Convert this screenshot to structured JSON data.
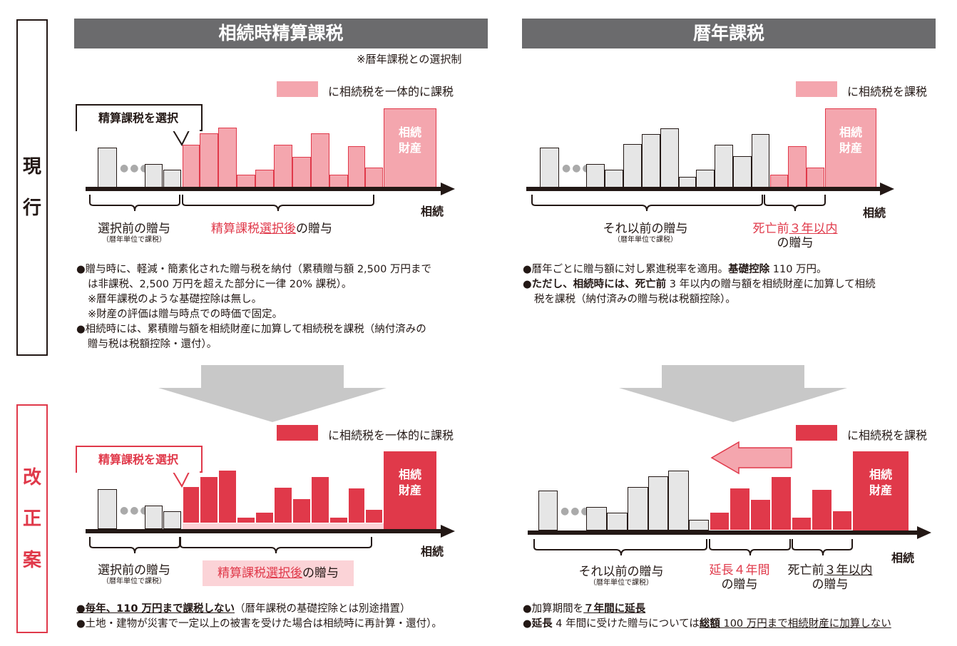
{
  "side_labels": {
    "current": [
      "現",
      "行"
    ],
    "revised": [
      "改",
      "正",
      "案"
    ]
  },
  "left": {
    "header": "相続時精算課税",
    "note": "※暦年課税との選択制",
    "current": {
      "legend": "に相続税を一体的に課税",
      "callout": "精算課税を選択",
      "property_label": [
        "相続",
        "財産"
      ],
      "axis_label": "相続",
      "brace_left_label": "選択前の贈与",
      "brace_left_sub": "（暦年単位で課税）",
      "brace_right_label_red": "精算課税",
      "brace_right_label_red_ul": "選択後",
      "brace_right_label_tail": "の贈与",
      "bullets": [
        "●贈与時に、軽減・簡素化された贈与税を納付（累積贈与額 2,500 万円まで",
        "は非課税、2,500 万円を超えた部分に一律 20% 課税）。",
        "※暦年課税のような基礎控除は無し。",
        "※財産の評価は贈与時点での時価で固定。",
        "●相続時には、累積贈与額を相続財産に加算して相続税を課税（納付済みの",
        "贈与税は税額控除・還付）。"
      ]
    },
    "revised": {
      "legend": "に相続税を一体的に課税",
      "callout": "精算課税を選択",
      "property_label": [
        "相続",
        "財産"
      ],
      "axis_label": "相続",
      "brace_left_label": "選択前の贈与",
      "brace_left_sub": "（暦年単位で課税）",
      "brace_right_label_red": "精算課税",
      "brace_right_label_red_ul": "選択後",
      "brace_right_label_tail": "の贈与",
      "bullet1_bold": "●毎年、110 万円まで課税しない",
      "bullet1_tail": "（暦年課税の基礎控除とは別途措置）",
      "bullet2": "●土地・建物が災害で一定以上の被害を受けた場合は相続時に再計算・還付）。"
    }
  },
  "right": {
    "header": "暦年課税",
    "current": {
      "legend": "に相続税を課税",
      "property_label": [
        "相続",
        "財産"
      ],
      "axis_label": "相続",
      "brace_left_label": "それ以前の贈与",
      "brace_left_sub": "（暦年単位で課税）",
      "brace_right_red_a": "死亡前",
      "brace_right_red_ul": "３年以内",
      "brace_right_line2": "の贈与",
      "bullet1_a": "●暦年ごとに贈与額に対し累進税率を適用。",
      "bullet1_bold": "基礎控除",
      "bullet1_tail": " 110 万円。",
      "bullet2_bold": "●ただし、相続時には、死亡前",
      "bullet2_tail": " 3 年以内の贈与額を相続財産に加算して相続",
      "bullet2_line2": "税を課税（納付済みの贈与税は税額控除）。"
    },
    "revised": {
      "legend": "に相続税を課税",
      "property_label": [
        "相続",
        "財産"
      ],
      "axis_label": "相続",
      "brace_left_label": "それ以前の贈与",
      "brace_left_sub": "（暦年単位で課税）",
      "brace_mid_red": "延長４年間",
      "brace_mid_line2": "の贈与",
      "brace_right_a": "死亡前",
      "brace_right_ul": "３年以内",
      "brace_right_line2": "の贈与",
      "bullet1_a": "●加算期間を",
      "bullet1_bold": "７年間に延長",
      "bullet2_bold1": "●延長",
      "bullet2_mid": " 4 年間に受けた贈与については",
      "bullet2_bold2": "総額",
      "bullet2_tail": " 100 万円まで相続財産に加算しない"
    }
  },
  "colors": {
    "red": "#e0394a",
    "pink": "#f4a6ae",
    "gray": "#e6e6e6",
    "header": "#6b6b6d",
    "arrow_gray": "#c8c8c8"
  }
}
